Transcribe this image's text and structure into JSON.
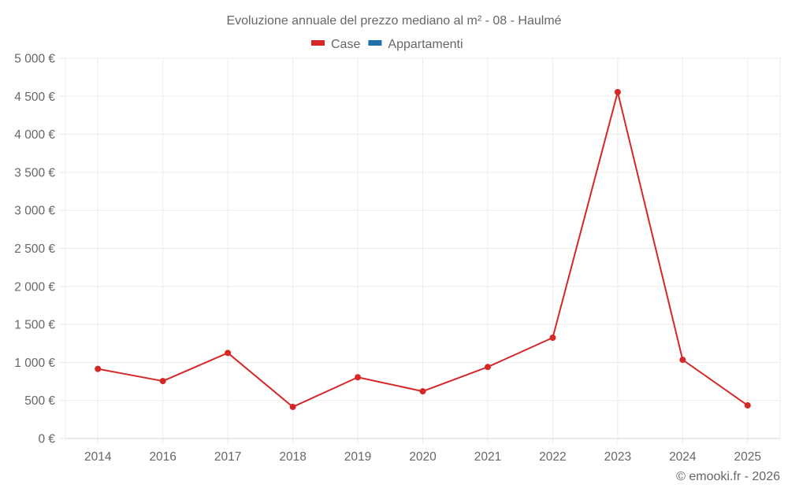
{
  "chart_data": {
    "type": "line",
    "title": "Evoluzione annuale del prezzo mediano al m² - 08 - Haulmé",
    "xlabel": "",
    "ylabel": "",
    "categories": [
      "2014",
      "2016",
      "2017",
      "2018",
      "2019",
      "2020",
      "2021",
      "2022",
      "2023",
      "2024",
      "2025"
    ],
    "series": [
      {
        "name": "Case",
        "color": "#d62728",
        "values": [
          915,
          755,
          1125,
          415,
          805,
          620,
          940,
          1325,
          4555,
          1035,
          435
        ]
      },
      {
        "name": "Appartamenti",
        "color": "#1f6fa8",
        "values": []
      }
    ],
    "ylim": [
      0,
      5000
    ],
    "yticks": [
      0,
      500,
      1000,
      1500,
      2000,
      2500,
      3000,
      3500,
      4000,
      4500,
      5000
    ],
    "ytick_labels": [
      "0 €",
      "500 €",
      "1 000 €",
      "1 500 €",
      "2 000 €",
      "2 500 €",
      "3 000 €",
      "3 500 €",
      "4 000 €",
      "4 500 €",
      "5 000 €"
    ],
    "grid": true,
    "legend_position": "top"
  },
  "credit": "© emooki.fr - 2026"
}
